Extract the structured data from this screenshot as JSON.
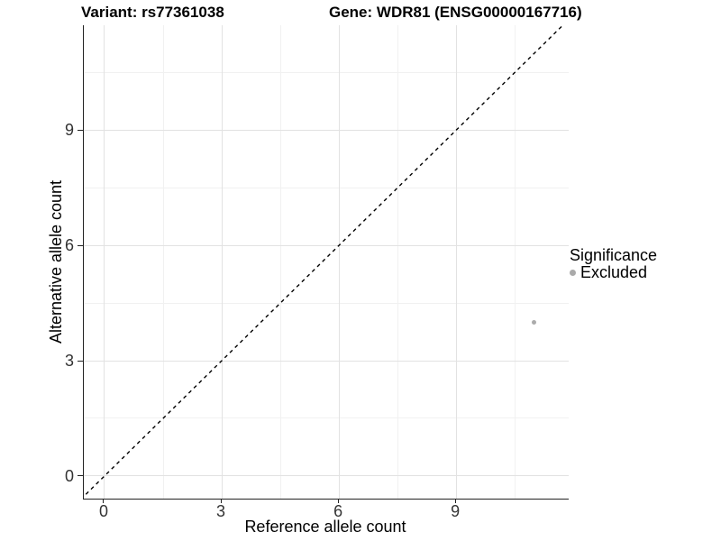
{
  "titles": {
    "variant": "Variant: rs77361038",
    "gene": "Gene: WDR81 (ENSG00000167716)"
  },
  "legend": {
    "title": "Significance",
    "items": [
      {
        "label": "Excluded",
        "color": "#AAAAAA",
        "marker": "circle-icon"
      }
    ]
  },
  "colors": {
    "grid_major": "#E2E2E2",
    "grid_minor": "#F1F1F1",
    "axis_line": "#222222",
    "tick": "#222222",
    "tick_label": "#333333",
    "point": "#ABABAB",
    "reference_line": "#000000"
  },
  "chart_data": {
    "type": "scatter",
    "title": "Variant: rs77361038 — Gene: WDR81 (ENSG00000167716)",
    "xlabel": "Reference allele count",
    "ylabel": "Alternative allele count",
    "xlim": [
      -0.53,
      11.88
    ],
    "ylim": [
      -0.59,
      11.73
    ],
    "x_ticks": [
      0,
      3,
      6,
      9
    ],
    "y_ticks": [
      0,
      3,
      6,
      9
    ],
    "x_minor_ticks": [
      1.5,
      4.5,
      7.5,
      10.5
    ],
    "y_minor_ticks": [
      1.5,
      4.5,
      7.5,
      10.5
    ],
    "grid": "major+minor",
    "legend_position": "right",
    "reference_line": {
      "slope": 1,
      "intercept": 0,
      "style": "dashed"
    },
    "series": [
      {
        "name": "Excluded",
        "color": "#ABABAB",
        "points": [
          {
            "x": 11,
            "y": 4
          }
        ]
      }
    ]
  }
}
